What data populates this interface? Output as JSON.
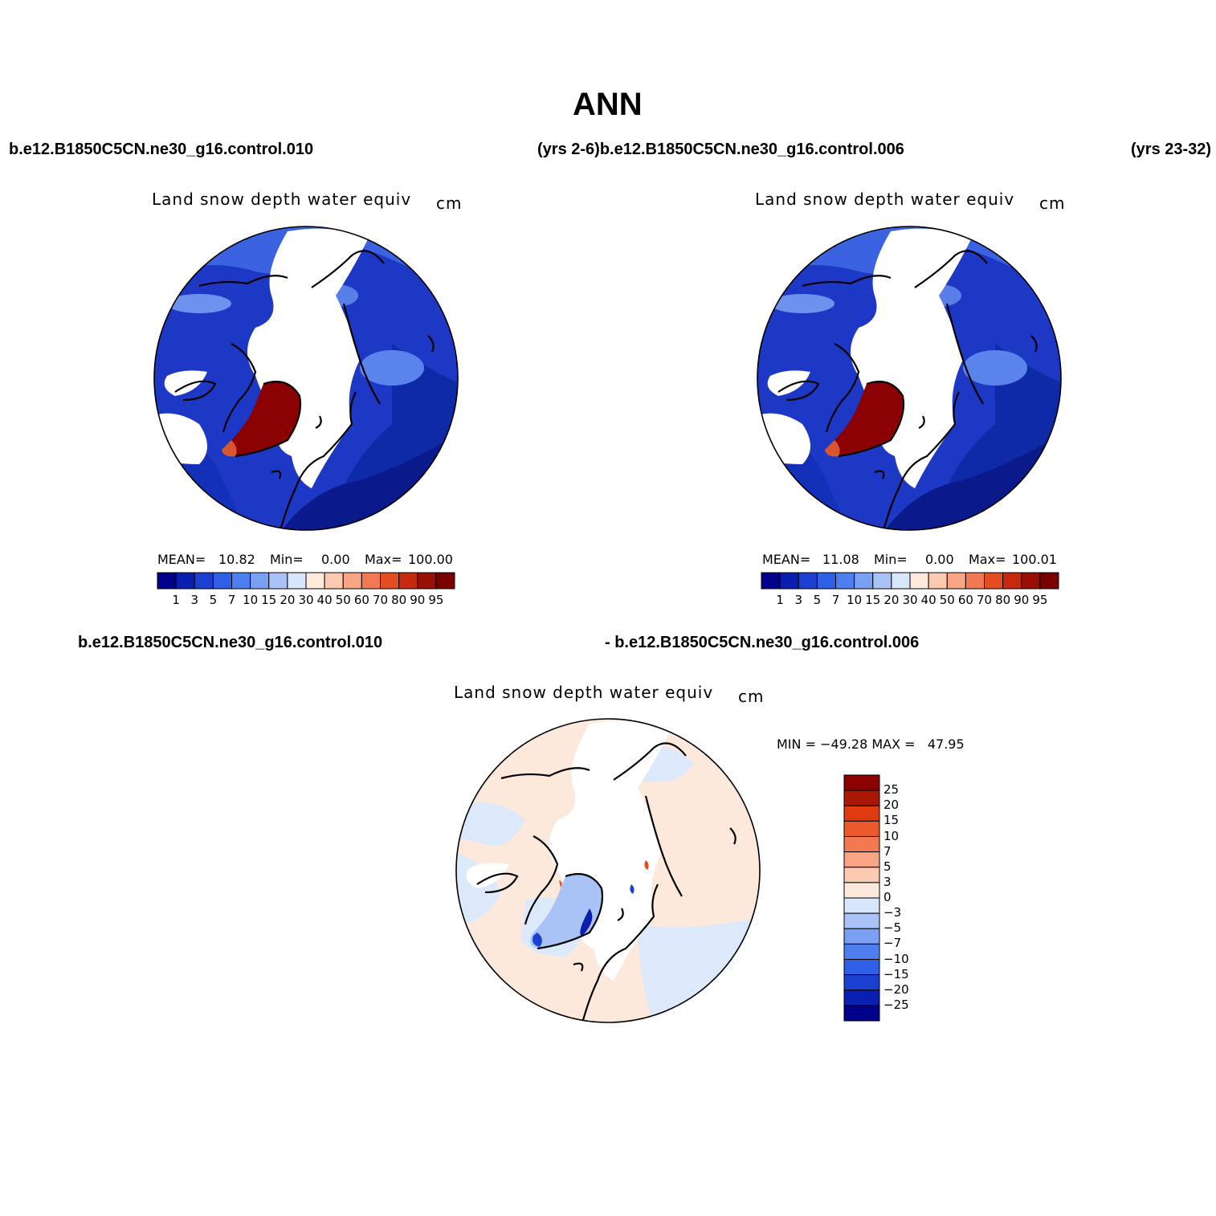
{
  "header": {
    "title": "ANN",
    "case1_label": "b.e12.B1850C5CN.ne30_g16.control.010",
    "case1_years_case2": "(yrs 2-6)b.e12.B1850C5CN.ne30_g16.control.006",
    "case2_years": "(yrs 23-32)"
  },
  "colors": {
    "abs_scale": [
      "#00008b",
      "#0a1fb0",
      "#1b3fd0",
      "#2f5fe6",
      "#4d7ff0",
      "#7aa0f3",
      "#a9c3f6",
      "#d8e6fb",
      "#ffe9dc",
      "#fccab1",
      "#f7a584",
      "#f27a52",
      "#e44d22",
      "#c42a0b",
      "#9a0f04",
      "#7a0000"
    ],
    "diff_scale": [
      "#00008b",
      "#0a1fb0",
      "#1b3fd0",
      "#2f5fe6",
      "#4d7ff0",
      "#7aa0f3",
      "#a9c3f6",
      "#d8e6fb",
      "#fde9dc",
      "#fccab1",
      "#f7a584",
      "#f27a52",
      "#ea5a2a",
      "#e03a10",
      "#a81805",
      "#8b0000"
    ]
  },
  "panel_left": {
    "title": "Land snow depth water equiv",
    "units": "cm",
    "mean_label": "MEAN=",
    "mean": "10.82",
    "min_label": "Min=",
    "min": "0.00",
    "max_label": "Max=",
    "max": "100.00"
  },
  "panel_right": {
    "title": "Land snow depth water equiv",
    "units": "cm",
    "mean_label": "MEAN=",
    "mean": "11.08",
    "min_label": "Min=",
    "min": "0.00",
    "max_label": "Max=",
    "max": "100.01"
  },
  "abs_colorbar_ticks": [
    "1",
    "3",
    "5",
    "7",
    "10",
    "15",
    "20",
    "30",
    "40",
    "50",
    "60",
    "70",
    "80",
    "90",
    "95"
  ],
  "diff_header": {
    "left": "b.e12.B1850C5CN.ne30_g16.control.010",
    "right": "- b.e12.B1850C5CN.ne30_g16.control.006"
  },
  "panel_diff": {
    "title": "Land snow depth water equiv",
    "units": "cm",
    "minmax": "MIN = −49.28 MAX =   47.95"
  },
  "diff_colorbar_ticks": [
    "25",
    "20",
    "15",
    "10",
    "7",
    "5",
    "3",
    "0",
    "−3",
    "−5",
    "−7",
    "−10",
    "−15",
    "−20",
    "−25"
  ]
}
